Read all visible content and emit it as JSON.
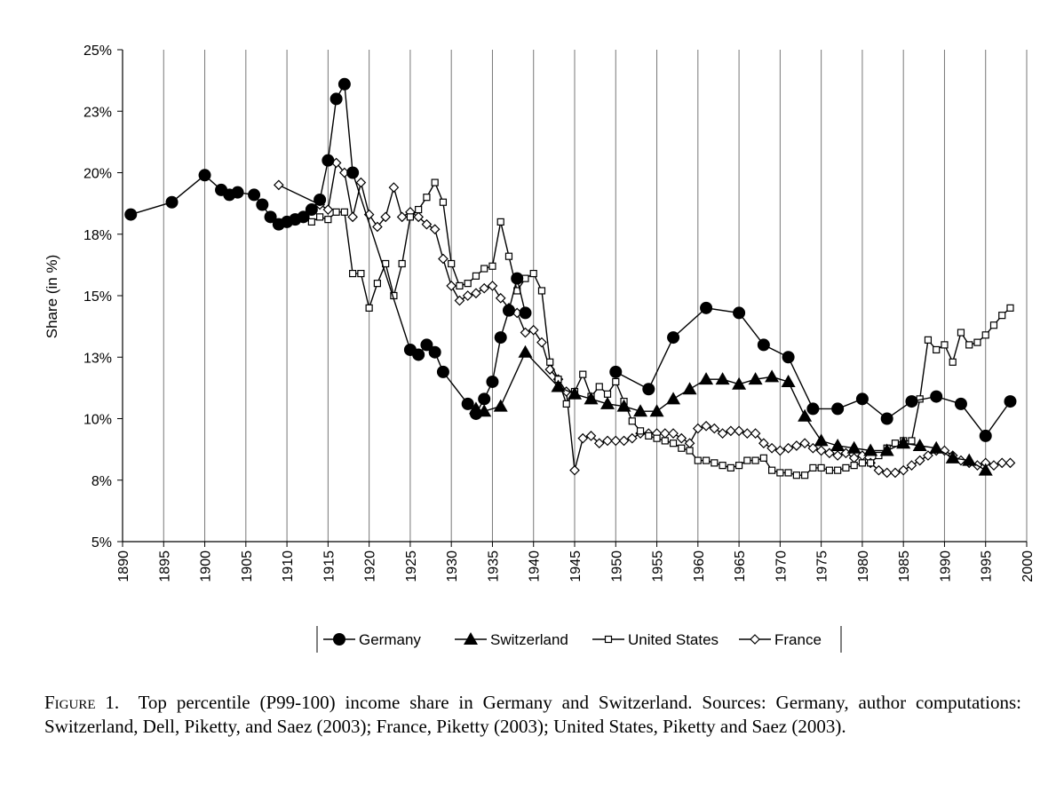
{
  "chart_data": {
    "type": "line",
    "title": "",
    "xlabel": "",
    "ylabel": "Share (in %)",
    "xlim": [
      1890,
      2000
    ],
    "ylim": [
      5,
      25
    ],
    "x_ticks": [
      "1890",
      "1895",
      "1900",
      "1905",
      "1910",
      "1915",
      "1920",
      "1925",
      "1930",
      "1935",
      "1940",
      "1945",
      "1950",
      "1955",
      "1960",
      "1965",
      "1970",
      "1975",
      "1980",
      "1985",
      "1990",
      "1995",
      "2000"
    ],
    "y_ticks": [
      "5%",
      "8%",
      "10%",
      "13%",
      "15%",
      "18%",
      "20%",
      "23%",
      "25%"
    ],
    "grid": "vertical",
    "legend_position": "bottom",
    "series": [
      {
        "name": "Germany",
        "marker": "filled-circle",
        "points": [
          [
            1891,
            18.3
          ],
          [
            1896,
            18.8
          ],
          [
            1900,
            19.9
          ],
          [
            1902,
            19.3
          ],
          [
            1903,
            19.1
          ],
          [
            1904,
            19.2
          ],
          [
            1906,
            19.1
          ],
          [
            1907,
            18.7
          ],
          [
            1908,
            18.2
          ],
          [
            1909,
            17.9
          ],
          [
            1910,
            18.0
          ],
          [
            1911,
            18.1
          ],
          [
            1912,
            18.2
          ],
          [
            1913,
            18.5
          ],
          [
            1914,
            18.9
          ],
          [
            1915,
            20.5
          ],
          [
            1916,
            23.0
          ],
          [
            1917,
            23.6
          ],
          [
            1918,
            20.0
          ],
          [
            1925,
            12.8
          ],
          [
            1926,
            12.6
          ],
          [
            1927,
            13.0
          ],
          [
            1928,
            12.7
          ],
          [
            1929,
            11.9
          ],
          [
            1932,
            10.6
          ],
          [
            1933,
            10.2
          ],
          [
            1934,
            10.8
          ],
          [
            1935,
            11.5
          ],
          [
            1936,
            13.3
          ],
          [
            1937,
            14.4
          ],
          [
            1938,
            15.7
          ],
          [
            1939,
            14.3
          ]
        ],
        "segments_break_after": [
          1918,
          1939
        ],
        "points2": [
          [
            1950,
            11.9
          ],
          [
            1954,
            11.2
          ],
          [
            1957,
            13.3
          ],
          [
            1961,
            14.5
          ],
          [
            1965,
            14.3
          ],
          [
            1968,
            13.0
          ],
          [
            1971,
            12.5
          ],
          [
            1974,
            10.4
          ],
          [
            1977,
            10.4
          ],
          [
            1980,
            10.8
          ],
          [
            1983,
            10.0
          ],
          [
            1986,
            10.7
          ],
          [
            1989,
            10.9
          ],
          [
            1992,
            10.6
          ],
          [
            1995,
            9.3
          ],
          [
            1998,
            10.7
          ]
        ]
      },
      {
        "name": "Switzerland",
        "marker": "filled-triangle",
        "points": [
          [
            1933,
            10.4
          ],
          [
            1934,
            10.3
          ],
          [
            1936,
            10.5
          ],
          [
            1939,
            12.7
          ],
          [
            1943,
            11.3
          ],
          [
            1945,
            11.0
          ],
          [
            1947,
            10.8
          ],
          [
            1949,
            10.6
          ],
          [
            1951,
            10.5
          ],
          [
            1953,
            10.3
          ],
          [
            1955,
            10.3
          ],
          [
            1957,
            10.8
          ],
          [
            1959,
            11.2
          ],
          [
            1961,
            11.6
          ],
          [
            1963,
            11.6
          ],
          [
            1965,
            11.4
          ],
          [
            1967,
            11.6
          ],
          [
            1969,
            11.7
          ],
          [
            1971,
            11.5
          ],
          [
            1973,
            10.1
          ],
          [
            1975,
            9.1
          ],
          [
            1977,
            8.9
          ],
          [
            1979,
            8.8
          ],
          [
            1981,
            8.7
          ],
          [
            1983,
            8.7
          ],
          [
            1985,
            9.0
          ],
          [
            1987,
            8.9
          ],
          [
            1989,
            8.8
          ],
          [
            1991,
            8.4
          ],
          [
            1993,
            8.3
          ],
          [
            1995,
            7.9
          ]
        ]
      },
      {
        "name": "United States",
        "marker": "open-square",
        "points": [
          [
            1913,
            18.0
          ],
          [
            1914,
            18.2
          ],
          [
            1915,
            18.1
          ],
          [
            1916,
            18.4
          ],
          [
            1917,
            18.4
          ],
          [
            1918,
            15.9
          ],
          [
            1919,
            15.9
          ],
          [
            1920,
            14.5
          ],
          [
            1921,
            15.5
          ],
          [
            1922,
            16.3
          ],
          [
            1923,
            15.0
          ],
          [
            1924,
            16.3
          ],
          [
            1925,
            18.2
          ],
          [
            1926,
            18.5
          ],
          [
            1927,
            19.0
          ],
          [
            1928,
            19.6
          ],
          [
            1929,
            18.8
          ],
          [
            1930,
            16.3
          ],
          [
            1931,
            15.4
          ],
          [
            1932,
            15.5
          ],
          [
            1933,
            15.8
          ],
          [
            1934,
            16.1
          ],
          [
            1935,
            16.2
          ],
          [
            1936,
            18.0
          ],
          [
            1937,
            16.6
          ],
          [
            1938,
            15.2
          ],
          [
            1939,
            15.7
          ],
          [
            1940,
            15.9
          ],
          [
            1941,
            15.2
          ],
          [
            1942,
            12.3
          ],
          [
            1943,
            11.6
          ],
          [
            1944,
            10.6
          ],
          [
            1945,
            11.1
          ],
          [
            1946,
            11.8
          ],
          [
            1947,
            10.9
          ],
          [
            1948,
            11.3
          ],
          [
            1949,
            11.0
          ],
          [
            1950,
            11.5
          ],
          [
            1951,
            10.7
          ],
          [
            1952,
            9.9
          ],
          [
            1953,
            9.5
          ],
          [
            1954,
            9.3
          ],
          [
            1955,
            9.2
          ],
          [
            1956,
            9.1
          ],
          [
            1957,
            9.0
          ],
          [
            1958,
            8.8
          ],
          [
            1959,
            8.7
          ],
          [
            1960,
            8.3
          ],
          [
            1961,
            8.3
          ],
          [
            1962,
            8.2
          ],
          [
            1963,
            8.1
          ],
          [
            1964,
            8.0
          ],
          [
            1965,
            8.1
          ],
          [
            1966,
            8.3
          ],
          [
            1967,
            8.3
          ],
          [
            1968,
            8.4
          ],
          [
            1969,
            7.9
          ],
          [
            1970,
            7.8
          ],
          [
            1971,
            7.8
          ],
          [
            1972,
            7.7
          ],
          [
            1973,
            7.7
          ],
          [
            1974,
            8.0
          ],
          [
            1975,
            8.0
          ],
          [
            1976,
            7.9
          ],
          [
            1977,
            7.9
          ],
          [
            1978,
            8.0
          ],
          [
            1979,
            8.1
          ],
          [
            1980,
            8.2
          ],
          [
            1981,
            8.2
          ],
          [
            1982,
            8.5
          ],
          [
            1983,
            8.8
          ],
          [
            1984,
            9.0
          ],
          [
            1985,
            9.1
          ],
          [
            1986,
            9.1
          ],
          [
            1987,
            10.8
          ],
          [
            1988,
            13.2
          ],
          [
            1989,
            12.8
          ],
          [
            1990,
            13.0
          ],
          [
            1991,
            12.3
          ],
          [
            1992,
            13.5
          ],
          [
            1993,
            13.0
          ],
          [
            1994,
            13.1
          ],
          [
            1995,
            13.4
          ],
          [
            1996,
            13.8
          ],
          [
            1997,
            14.2
          ],
          [
            1998,
            14.5
          ]
        ]
      },
      {
        "name": "France",
        "marker": "open-diamond",
        "points": [
          [
            1909,
            19.5
          ],
          [
            1914,
            18.7
          ],
          [
            1915,
            18.5
          ],
          [
            1916,
            20.4
          ],
          [
            1917,
            20.0
          ],
          [
            1918,
            18.2
          ],
          [
            1919,
            19.6
          ],
          [
            1920,
            18.3
          ],
          [
            1921,
            17.8
          ],
          [
            1922,
            18.2
          ],
          [
            1923,
            19.4
          ],
          [
            1924,
            18.2
          ],
          [
            1925,
            18.4
          ],
          [
            1926,
            18.2
          ],
          [
            1927,
            17.9
          ],
          [
            1928,
            17.7
          ],
          [
            1929,
            16.5
          ],
          [
            1930,
            15.4
          ],
          [
            1931,
            14.8
          ],
          [
            1932,
            15.0
          ],
          [
            1933,
            15.1
          ],
          [
            1934,
            15.3
          ],
          [
            1935,
            15.4
          ],
          [
            1936,
            14.9
          ],
          [
            1937,
            14.5
          ],
          [
            1938,
            14.3
          ],
          [
            1939,
            13.5
          ],
          [
            1940,
            13.6
          ],
          [
            1941,
            13.1
          ],
          [
            1942,
            12.0
          ],
          [
            1943,
            11.6
          ],
          [
            1944,
            11.1
          ],
          [
            1945,
            7.9
          ],
          [
            1946,
            9.2
          ],
          [
            1947,
            9.3
          ],
          [
            1948,
            9.0
          ],
          [
            1949,
            9.1
          ],
          [
            1950,
            9.1
          ],
          [
            1951,
            9.1
          ],
          [
            1952,
            9.2
          ],
          [
            1953,
            9.4
          ],
          [
            1954,
            9.4
          ],
          [
            1955,
            9.4
          ],
          [
            1956,
            9.4
          ],
          [
            1957,
            9.4
          ],
          [
            1958,
            9.2
          ],
          [
            1959,
            9.0
          ],
          [
            1960,
            9.6
          ],
          [
            1961,
            9.7
          ],
          [
            1962,
            9.6
          ],
          [
            1963,
            9.4
          ],
          [
            1964,
            9.5
          ],
          [
            1965,
            9.5
          ],
          [
            1966,
            9.4
          ],
          [
            1967,
            9.4
          ],
          [
            1968,
            9.0
          ],
          [
            1969,
            8.8
          ],
          [
            1970,
            8.7
          ],
          [
            1971,
            8.8
          ],
          [
            1972,
            8.9
          ],
          [
            1973,
            9.0
          ],
          [
            1974,
            8.8
          ],
          [
            1975,
            8.7
          ],
          [
            1976,
            8.6
          ],
          [
            1977,
            8.5
          ],
          [
            1978,
            8.6
          ],
          [
            1979,
            8.4
          ],
          [
            1980,
            8.5
          ],
          [
            1981,
            8.2
          ],
          [
            1982,
            7.9
          ],
          [
            1983,
            7.8
          ],
          [
            1984,
            7.8
          ],
          [
            1985,
            7.9
          ],
          [
            1986,
            8.1
          ],
          [
            1987,
            8.3
          ],
          [
            1988,
            8.5
          ],
          [
            1989,
            8.7
          ],
          [
            1990,
            8.7
          ],
          [
            1991,
            8.5
          ],
          [
            1992,
            8.3
          ],
          [
            1993,
            8.2
          ],
          [
            1994,
            8.1
          ],
          [
            1995,
            8.2
          ],
          [
            1996,
            8.1
          ],
          [
            1997,
            8.2
          ],
          [
            1998,
            8.2
          ]
        ]
      }
    ]
  },
  "caption": {
    "label": "Figure 1.",
    "text": "Top percentile (P99-100) income share in Germany and Switzerland. Sources: Germany, author computations: Switzerland, Dell, Piketty, and Saez (2003); France, Piketty (2003); United States, Piketty and Saez (2003)."
  }
}
